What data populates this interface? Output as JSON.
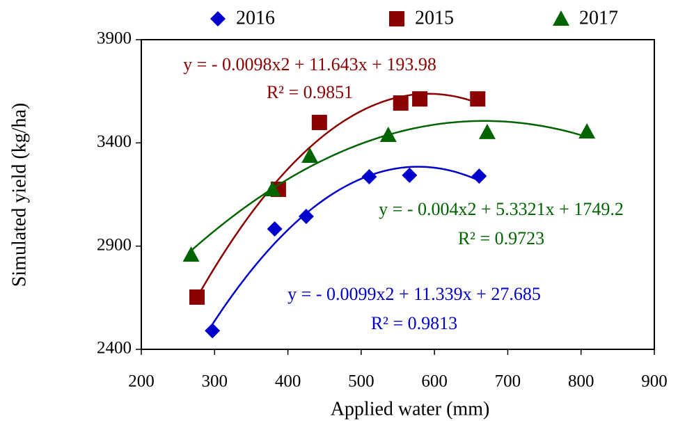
{
  "chart_data": {
    "type": "scatter",
    "xlabel": "Applied water (mm)",
    "ylabel": "Simulated yield (kg/ha)",
    "xlim": [
      200,
      900
    ],
    "xticks": [
      200,
      300,
      400,
      500,
      600,
      700,
      800,
      900
    ],
    "ylim": [
      2400,
      3900
    ],
    "yticks": [
      2400,
      2900,
      3400,
      3900
    ],
    "trendline": "polynomial",
    "series": [
      {
        "name": "2016",
        "color": "#0000cc",
        "marker": "diamond",
        "x": [
          297,
          382,
          425,
          511,
          566,
          661
        ],
        "values": [
          2490,
          2983,
          3044,
          3236,
          3243,
          3239
        ]
      },
      {
        "name": "2015",
        "color": "#8b0000",
        "marker": "square",
        "x": [
          276,
          387,
          443,
          554,
          580,
          659
        ],
        "values": [
          2653,
          3175,
          3499,
          3593,
          3613,
          3613
        ]
      },
      {
        "name": "2017",
        "color": "#006400",
        "marker": "triangle",
        "x": [
          268,
          379,
          430,
          537,
          672,
          808
        ],
        "values": [
          2858,
          3175,
          3337,
          3438,
          3452,
          3455
        ]
      }
    ],
    "annotations": [
      {
        "text": "y = - 0.0099x2 + 11.339x + 27.685",
        "color": "#0000cc"
      },
      {
        "text": "R² = 0.9813",
        "color": "#0000cc"
      },
      {
        "text": "y = -  0.0098x2 + 11.643x + 193.98",
        "color": "#8b0000"
      },
      {
        "text": "R² = 0.9851",
        "color": "#8b0000"
      },
      {
        "text": "y = - 0.004x2 + 5.3321x + 1749.2",
        "color": "#006400"
      },
      {
        "text": "R² = 0.9723",
        "color": "#006400"
      }
    ]
  }
}
